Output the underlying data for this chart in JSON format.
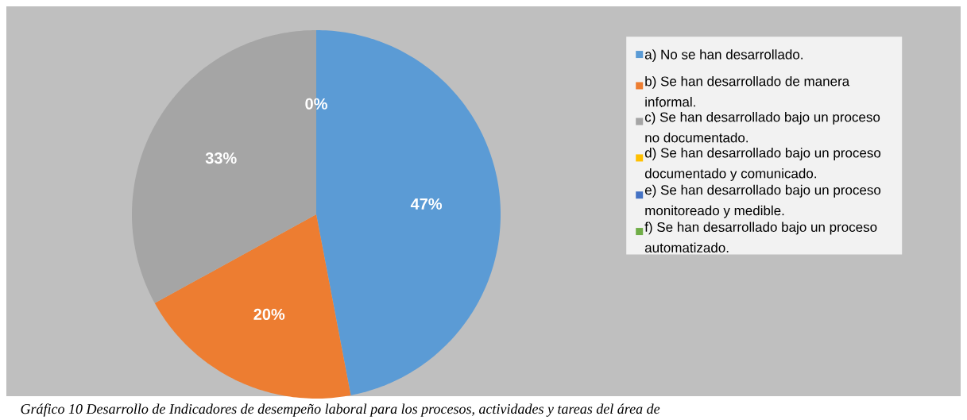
{
  "chart_data": {
    "type": "pie",
    "categories": [
      "a) No se han desarrollado.",
      "b) Se han desarrollado de manera informal.",
      "c) Se han desarrollado bajo un proceso no documentado.",
      "d) Se han desarrollado bajo un proceso documentado y comunicado.",
      "e) Se han desarrollado bajo un proceso monitoreado y medible.",
      "f) Se han desarrollado bajo un proceso automatizado."
    ],
    "values": [
      47,
      20,
      33,
      0,
      0,
      0
    ],
    "colors": [
      "#5b9bd5",
      "#ed7d31",
      "#a5a5a5",
      "#ffc000",
      "#4472c4",
      "#70ad47"
    ],
    "value_labels": [
      "47%",
      "20%",
      "33%",
      "0%",
      null,
      null
    ],
    "legend": "right",
    "annotations": [
      "Gráfico 10 Desarrollo de Indicadores de desempeño laboral para los procesos, actividades y tareas del área de"
    ]
  }
}
